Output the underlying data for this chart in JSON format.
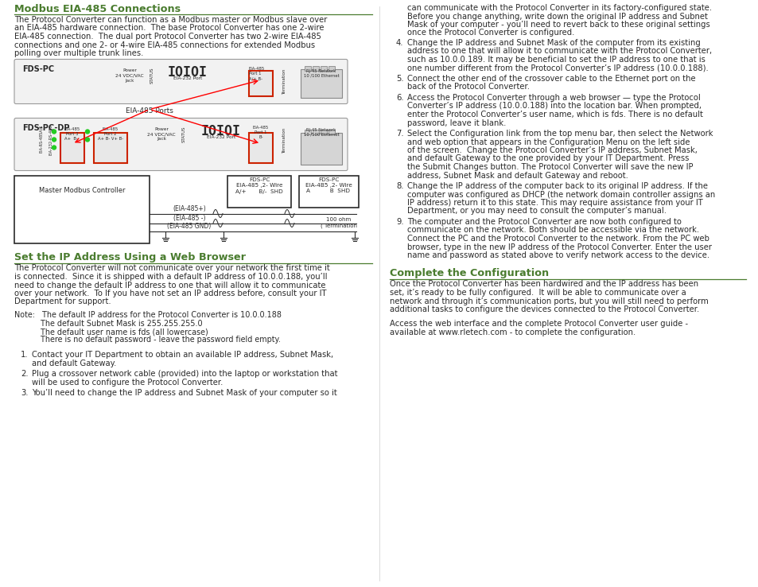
{
  "title_color": "#4a7c2f",
  "text_color": "#2a2a2a",
  "bg_color": "#ffffff",
  "heading1": "Modbus EIA-485 Connections",
  "heading2": "Set the IP Address Using a Web Browser",
  "heading3_right": "Complete the Configuration",
  "body1_lines": [
    "The Protocol Converter can function as a Modbus master or Modbus slave over",
    "an EIA-485 hardware connection.  The base Protocol Converter has one 2-wire",
    "EIA-485 connection.  The dual port Protocol Converter has two 2-wire EIA-485",
    "connections and one 2- or 4-wire EIA-485 connections for extended Modbus",
    "polling over multiple trunk lines."
  ],
  "body2_lines": [
    "The Protocol Converter will not communicate over your network the first time it",
    "is connected.  Since it is shipped with a default IP address of 10.0.0.188, you’ll",
    "need to change the default IP address to one that will allow it to communicate",
    "over your network.  To If you have not set an IP address before, consult your IT",
    "Department for support."
  ],
  "note_lines": [
    "Note:   The default IP address for the Protocol Converter is 10.0.0.188",
    "           The default Subnet Mask is 255.255.255.0",
    "           The default user name is fds (all lowercase)",
    "           There is no default password - leave the password field empty."
  ],
  "items_left": [
    [
      "Contact your IT Department to obtain an available IP address, Subnet Mask,",
      "and default Gateway."
    ],
    [
      "Plug a crossover network cable (provided) into the laptop or workstation that",
      "will be used to configure the Protocol Converter."
    ],
    [
      "You’ll need to change the IP address and Subnet Mask of your computer so it"
    ]
  ],
  "right_top_lines": [
    "can communicate with the Protocol Converter in its factory-configured state.",
    "Before you change anything, write down the original IP address and Subnet",
    "Mask of your computer - you’ll need to revert back to these original settings",
    "once the Protocol Converter is configured."
  ],
  "items_right": [
    {
      "num": "4.",
      "lines": [
        "Change the IP address and Subnet Mask of the computer from its existing",
        "address to one that will allow it to communicate with the Protocol Converter,",
        "such as 10.0.0.189. It may be beneficial to set the IP address to one that is",
        "one number different from the Protocol Converter’s IP address (10.0.0.188)."
      ]
    },
    {
      "num": "5.",
      "lines": [
        "Connect the other end of the crossover cable to the Ethernet port on the",
        "back of the Protocol Converter."
      ]
    },
    {
      "num": "6.",
      "lines": [
        "Access the Protocol Converter through a web browser — type the Protocol",
        "Converter’s IP address (10.0.0.188) into the location bar. When prompted,",
        "enter the Protocol Converter’s user name, which is fds. There is no default",
        "password, leave it blank."
      ]
    },
    {
      "num": "7.",
      "lines": [
        "Select the Configuration link from the top menu bar, then select the Network",
        "and web option that appears in the Configuration Menu on the left side",
        "of the screen.  Change the Protocol Converter’s IP address, Subnet Mask,",
        "and default Gateway to the one provided by your IT Department. Press",
        "the Submit Changes button. The Protocol Converter will save the new IP",
        "address, Subnet Mask and default Gateway and reboot."
      ]
    },
    {
      "num": "8.",
      "lines": [
        "Change the IP address of the computer back to its original IP address. If the",
        "computer was configured as DHCP (the network domain controller assigns an",
        "IP address) return it to this state. This may require assistance from your IT",
        "Department, or you may need to consult the computer’s manual."
      ]
    },
    {
      "num": "9.",
      "lines": [
        "The computer and the Protocol Converter are now both configured to",
        "communicate on the network. Both should be accessible via the network.",
        "Connect the PC and the Protocol Converter to the network. From the PC web",
        "browser, type in the new IP address of the Protocol Converter. Enter the user",
        "name and password as stated above to verify network access to the device."
      ]
    }
  ],
  "complete_lines": [
    "Once the Protocol Converter has been hardwired and the IP address has been",
    "set, it’s ready to be fully configured.  It will be able to communicate over a",
    "network and through it’s communication ports, but you will still need to perform",
    "additional tasks to configure the devices connected to the Protocol Converter."
  ],
  "complete_lines2": [
    "Access the web interface and the complete Protocol Converter user guide -",
    "available at www.rletech.com - to complete the configuration."
  ]
}
